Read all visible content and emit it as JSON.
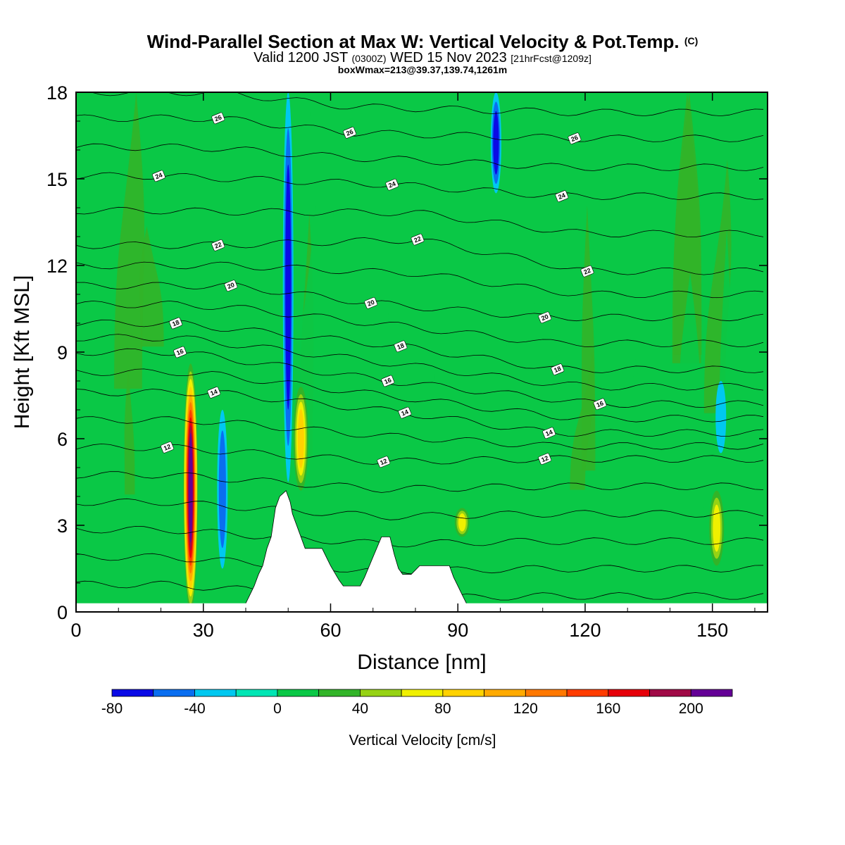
{
  "header": {
    "title": "Wind-Parallel Section at Max W: Vertical Velocity & Pot.Temp.",
    "copyright": "(C)",
    "valid_prefix": "Valid 1200 JST",
    "zulu": "(0300Z)",
    "valid_date": "WED 15 Nov 2023",
    "forecast": "[21hrFcst@1209z]",
    "boxinfo": "boxWmax=213@39.37,139.74,1261m"
  },
  "chart_data": {
    "type": "heatmap",
    "title": "Wind-Parallel Section at Max W: Vertical Velocity & Pot.Temp.",
    "xlabel": "Distance [nm]",
    "ylabel": "Height [Kft MSL]",
    "xlim": [
      0,
      163
    ],
    "ylim": [
      0,
      18
    ],
    "x_ticks": [
      0,
      30,
      60,
      90,
      120,
      150
    ],
    "y_ticks": [
      0,
      3,
      6,
      9,
      12,
      15,
      18
    ],
    "x_tick_labels": [
      "0",
      "30",
      "60",
      "90",
      "120",
      "150"
    ],
    "y_tick_labels": [
      "0",
      "3",
      "6",
      "9",
      "12",
      "15",
      "18"
    ],
    "colorbar": {
      "title": "Vertical Velocity [cm/s]",
      "boundaries": [
        -80,
        -60,
        -40,
        -20,
        0,
        20,
        40,
        60,
        80,
        100,
        120,
        140,
        160,
        180,
        200,
        220
      ],
      "tick_values": [
        -80,
        -40,
        0,
        40,
        80,
        120,
        160,
        200
      ],
      "tick_labels": [
        "-80",
        "-40",
        "0",
        "40",
        "80",
        "120",
        "160",
        "200"
      ],
      "colors": [
        "#0a0ae6",
        "#0a6ef0",
        "#00c8f0",
        "#00e6b4",
        "#0ac846",
        "#32b428",
        "#96d214",
        "#f0f000",
        "#ffd200",
        "#ffaa00",
        "#ff7800",
        "#ff3c00",
        "#e6000a",
        "#a00a46",
        "#640096"
      ]
    },
    "background_velocity": 5,
    "updrafts": [
      {
        "x": 27,
        "z_bottom": 0,
        "z_top": 8.6,
        "peak": 213
      },
      {
        "x": 53,
        "z_bottom": 4.2,
        "z_top": 7.8,
        "peak": 85
      },
      {
        "x": 151,
        "z_bottom": 1.6,
        "z_top": 4.2,
        "peak": 70
      },
      {
        "x": 91,
        "z_bottom": 2.6,
        "z_top": 3.6,
        "peak": 65
      }
    ],
    "downdrafts": [
      {
        "x": 50,
        "z_bottom": 4.5,
        "z_top": 18,
        "peak": -70
      },
      {
        "x": 99,
        "z_bottom": 14.5,
        "z_top": 18,
        "peak": -65
      },
      {
        "x": 34.5,
        "z_bottom": 1.5,
        "z_top": 7,
        "peak": -55
      },
      {
        "x": 152,
        "z_bottom": 5.5,
        "z_top": 8,
        "peak": -30
      }
    ],
    "terrain": [
      [
        40,
        0.3
      ],
      [
        41,
        0.6
      ],
      [
        42,
        0.9
      ],
      [
        43,
        1.3
      ],
      [
        44,
        1.6
      ],
      [
        45,
        2.2
      ],
      [
        46,
        2.6
      ],
      [
        47,
        3.6
      ],
      [
        48,
        4.0
      ],
      [
        49.5,
        4.2
      ],
      [
        50.5,
        3.8
      ],
      [
        51,
        3.4
      ],
      [
        52,
        3.0
      ],
      [
        53,
        2.6
      ],
      [
        54,
        2.2
      ],
      [
        58,
        2.2
      ],
      [
        59,
        1.9
      ],
      [
        60,
        1.6
      ],
      [
        62,
        1.1
      ],
      [
        63,
        0.9
      ],
      [
        67,
        0.9
      ],
      [
        68,
        1.2
      ],
      [
        70,
        1.9
      ],
      [
        72,
        2.6
      ],
      [
        74,
        2.6
      ],
      [
        75,
        2.0
      ],
      [
        76,
        1.5
      ],
      [
        77,
        1.3
      ],
      [
        79,
        1.3
      ],
      [
        81,
        1.6
      ],
      [
        88,
        1.6
      ],
      [
        89,
        1.2
      ],
      [
        90,
        0.9
      ],
      [
        91,
        0.6
      ],
      [
        92,
        0.3
      ]
    ],
    "theta_contours": {
      "unit": "C",
      "labels": [
        {
          "value": 12,
          "x": 21.5,
          "z": 5.7
        },
        {
          "value": 14,
          "x": 32.5,
          "z": 7.6
        },
        {
          "value": 16,
          "x": 24.5,
          "z": 9.0
        },
        {
          "value": 18,
          "x": 23.5,
          "z": 10.0
        },
        {
          "value": 20,
          "x": 36.5,
          "z": 11.3
        },
        {
          "value": 22,
          "x": 33.5,
          "z": 12.7
        },
        {
          "value": 24,
          "x": 19.5,
          "z": 15.1
        },
        {
          "value": 26,
          "x": 33.5,
          "z": 17.1
        },
        {
          "value": 26,
          "x": 64.5,
          "z": 16.6
        },
        {
          "value": 24,
          "x": 74.5,
          "z": 14.8
        },
        {
          "value": 22,
          "x": 80.5,
          "z": 12.9
        },
        {
          "value": 20,
          "x": 69.5,
          "z": 10.7
        },
        {
          "value": 18,
          "x": 76.5,
          "z": 9.2
        },
        {
          "value": 16,
          "x": 73.5,
          "z": 8.0
        },
        {
          "value": 14,
          "x": 77.5,
          "z": 6.9
        },
        {
          "value": 12,
          "x": 72.5,
          "z": 5.2
        },
        {
          "value": 26,
          "x": 117.5,
          "z": 16.4
        },
        {
          "value": 24,
          "x": 114.5,
          "z": 14.4
        },
        {
          "value": 22,
          "x": 120.5,
          "z": 11.8
        },
        {
          "value": 20,
          "x": 110.5,
          "z": 10.2
        },
        {
          "value": 18,
          "x": 113.5,
          "z": 8.4
        },
        {
          "value": 16,
          "x": 123.5,
          "z": 7.2
        },
        {
          "value": 14,
          "x": 111.5,
          "z": 6.2
        },
        {
          "value": 12,
          "x": 110.5,
          "z": 5.3
        }
      ]
    }
  }
}
